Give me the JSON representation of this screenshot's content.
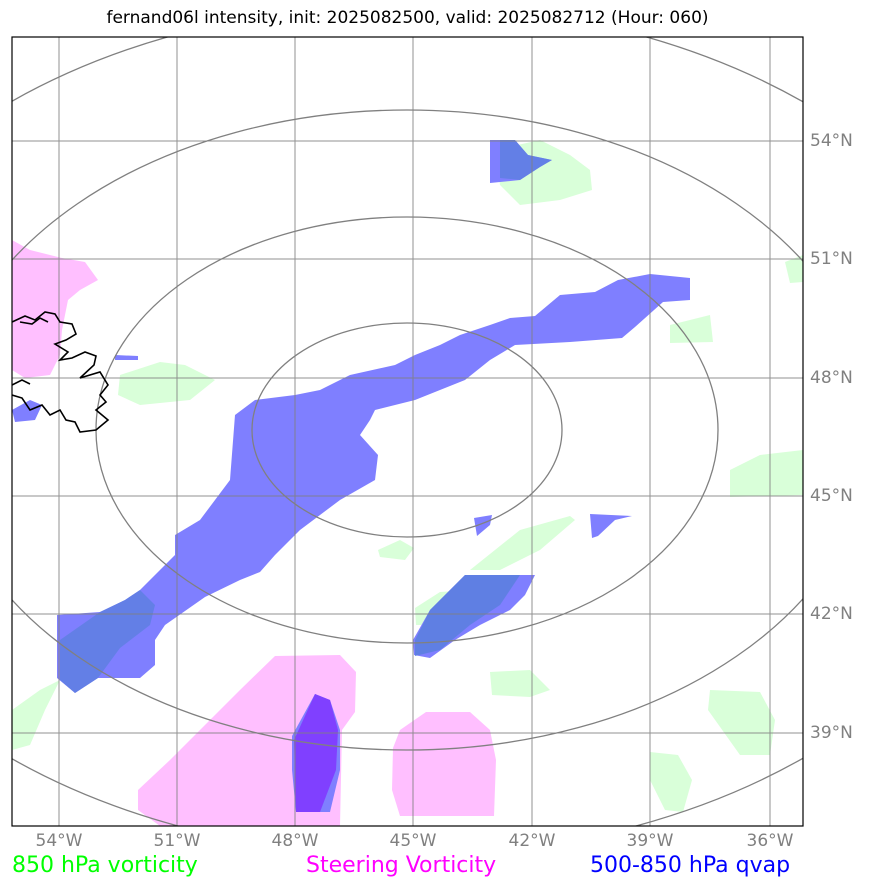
{
  "title": "fernand06l intensity, init: 2025082500, valid: 2025082712 (Hour: 060)",
  "lon_labels": [
    "54°W",
    "51°W",
    "48°W",
    "45°W",
    "42°W",
    "39°W",
    "36°W"
  ],
  "lat_labels": [
    "54°N",
    "51°N",
    "48°N",
    "45°N",
    "42°N",
    "39°N"
  ],
  "legend": [
    {
      "label": "850 hPa vorticity",
      "color": "#00ff00"
    },
    {
      "label": "Steering Vorticity",
      "color": "#ff00ff"
    },
    {
      "label": "500-850 hPa qvap",
      "color": "#0000ff"
    }
  ],
  "colors": {
    "vorticity_fill": "#d9ffd9",
    "steering_fill": "#ffbfff",
    "qvap_fill": "#7f7fff",
    "qvap_dense": "#8040ff",
    "grid": "#808080",
    "coast": "#000000"
  }
}
